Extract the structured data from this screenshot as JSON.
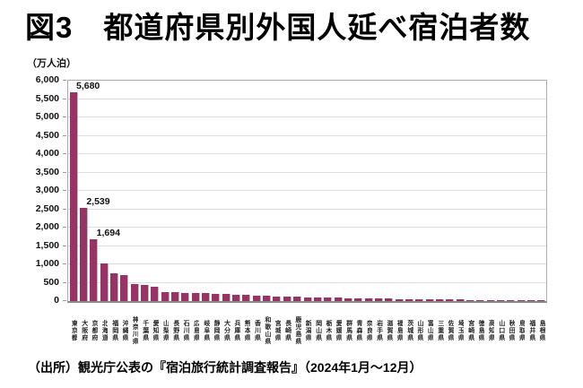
{
  "title": "図3　都道府県別外国人延べ宿泊者数",
  "unit_label": "（万人泊）",
  "source_note": "（出所）観光庁公表の『宿泊旅行統計調査報告』（2024年1月～12月）",
  "chart_data": {
    "type": "bar",
    "title": "都道府県別外国人延べ宿泊者数",
    "xlabel": "",
    "ylabel": "万人泊",
    "ylim": [
      0,
      6000
    ],
    "ytick_interval": 500,
    "yticks": [
      "0",
      "500",
      "1,000",
      "1,500",
      "2,000",
      "2,500",
      "3,000",
      "3,500",
      "4,000",
      "4,500",
      "5,000",
      "5,500",
      "6,000"
    ],
    "grid": true,
    "legend": "none",
    "bar_color": "#993366",
    "categories": [
      "東京都",
      "大阪府",
      "京都府",
      "北海道",
      "福岡県",
      "沖縄県",
      "神奈川県",
      "千葉県",
      "愛知県",
      "山梨県",
      "長野県",
      "石川県",
      "広島県",
      "岐阜県",
      "静岡県",
      "大分県",
      "兵庫県",
      "熊本県",
      "香川県",
      "和歌山県",
      "宮城県",
      "長崎県",
      "鹿児島県",
      "新潟県",
      "岡山県",
      "栃木県",
      "愛媛県",
      "群馬県",
      "青森県",
      "奈良県",
      "岩手県",
      "滋賀県",
      "福島県",
      "茨城県",
      "山形県",
      "富山県",
      "三重県",
      "佐賀県",
      "埼玉県",
      "宮崎県",
      "徳島県",
      "高知県",
      "山口県",
      "秋田県",
      "鳥取県",
      "福井県",
      "島根県"
    ],
    "values": [
      5680,
      2539,
      1694,
      1035,
      755,
      710,
      455,
      450,
      395,
      255,
      245,
      230,
      215,
      210,
      195,
      185,
      175,
      160,
      150,
      140,
      130,
      120,
      115,
      105,
      100,
      95,
      90,
      85,
      80,
      75,
      70,
      65,
      60,
      55,
      50,
      48,
      45,
      42,
      38,
      35,
      32,
      28,
      25,
      22,
      20,
      15,
      12
    ],
    "data_labels": [
      {
        "index": 0,
        "text": "5,680"
      },
      {
        "index": 1,
        "text": "2,539"
      },
      {
        "index": 2,
        "text": "1,694"
      }
    ]
  }
}
